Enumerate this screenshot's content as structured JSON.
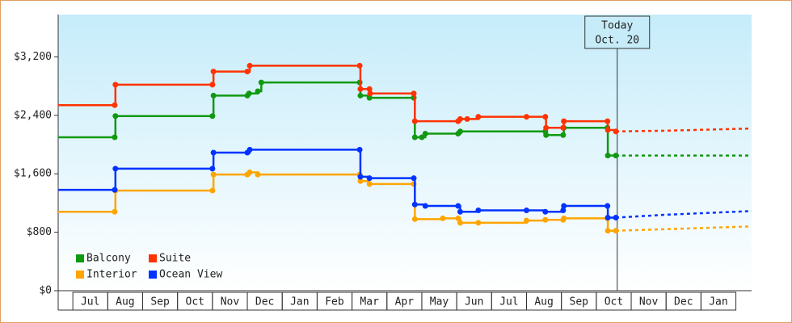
{
  "chart_data": {
    "type": "step-line",
    "legend": "lower left",
    "grid": false,
    "xlim": [
      -0.42,
      19.45
    ],
    "xticks": [
      {
        "value": 0.5,
        "label": "Jul"
      },
      {
        "value": 1.5,
        "label": "Aug"
      },
      {
        "value": 2.5,
        "label": "Sep"
      },
      {
        "value": 3.5,
        "label": "Oct"
      },
      {
        "value": 4.5,
        "label": "Nov"
      },
      {
        "value": 5.5,
        "label": "Dec"
      },
      {
        "value": 6.5,
        "label": "Jan"
      },
      {
        "value": 7.5,
        "label": "Feb"
      },
      {
        "value": 8.5,
        "label": "Mar"
      },
      {
        "value": 9.5,
        "label": "Apr"
      },
      {
        "value": 10.5,
        "label": "May"
      },
      {
        "value": 11.5,
        "label": "Jun"
      },
      {
        "value": 12.5,
        "label": "Jul"
      },
      {
        "value": 13.5,
        "label": "Aug"
      },
      {
        "value": 14.5,
        "label": "Sep"
      },
      {
        "value": 15.5,
        "label": "Oct"
      },
      {
        "value": 16.5,
        "label": "Nov"
      },
      {
        "value": 17.5,
        "label": "Dec"
      },
      {
        "value": 18.5,
        "label": "Jan"
      }
    ],
    "ylim": [
      0,
      3780
    ],
    "yticks": [
      {
        "value": 0,
        "label": "$0"
      },
      {
        "value": 800,
        "label": "$800"
      },
      {
        "value": 1600,
        "label": "$1,600"
      },
      {
        "value": 2400,
        "label": "$2,400"
      },
      {
        "value": 3200,
        "label": "$3,200"
      }
    ],
    "today": {
      "label": "Today",
      "date": "Oct. 20",
      "x": 15.6
    },
    "series": [
      {
        "name": "Balcony",
        "color": "#119911",
        "x": [
          -0.42,
          1.2,
          1.22,
          4.0,
          4.03,
          5.0,
          5.05,
          5.3,
          5.4,
          8.22,
          8.24,
          8.5,
          9.77,
          9.8,
          10.0,
          10.1,
          11.04,
          11.1,
          13.54,
          13.56,
          14.05,
          14.07,
          15.32,
          15.33,
          15.56
        ],
        "values": [
          2100,
          2100,
          2390,
          2390,
          2670,
          2670,
          2700,
          2730,
          2850,
          2850,
          2670,
          2640,
          2640,
          2100,
          2100,
          2150,
          2150,
          2180,
          2180,
          2130,
          2130,
          2230,
          2230,
          1850,
          1850
        ],
        "forecast": {
          "x": [
            15.56,
            19.45
          ],
          "values": [
            1850,
            1850
          ]
        }
      },
      {
        "name": "Suite",
        "color": "#ff3300",
        "x": [
          -0.42,
          1.2,
          1.22,
          4.0,
          4.03,
          5.0,
          5.07,
          8.22,
          8.24,
          8.5,
          8.52,
          9.77,
          9.8,
          11.04,
          11.1,
          11.3,
          11.62,
          13.0,
          13.54,
          13.56,
          14.05,
          14.07,
          15.32,
          15.33,
          15.56
        ],
        "values": [
          2540,
          2540,
          2820,
          2820,
          3000,
          3000,
          3080,
          3080,
          2760,
          2760,
          2700,
          2700,
          2320,
          2320,
          2350,
          2350,
          2380,
          2380,
          2380,
          2230,
          2230,
          2320,
          2320,
          2200,
          2180
        ],
        "forecast": {
          "x": [
            15.56,
            17,
            19.45
          ],
          "values": [
            2180,
            2190,
            2220
          ]
        }
      },
      {
        "name": "Interior",
        "color": "#ffa500",
        "x": [
          -0.42,
          1.2,
          1.22,
          4.0,
          4.03,
          5.0,
          5.07,
          5.3,
          8.22,
          8.24,
          8.5,
          9.77,
          9.8,
          10.6,
          11.04,
          11.1,
          11.62,
          13.0,
          13.54,
          14.05,
          14.07,
          15.32,
          15.33,
          15.56
        ],
        "values": [
          1080,
          1080,
          1370,
          1370,
          1590,
          1590,
          1620,
          1590,
          1590,
          1500,
          1460,
          1460,
          980,
          990,
          990,
          930,
          930,
          960,
          970,
          970,
          990,
          990,
          820,
          820
        ],
        "forecast": {
          "x": [
            15.56,
            19.45
          ],
          "values": [
            820,
            880
          ]
        }
      },
      {
        "name": "Ocean View",
        "color": "#0033ff",
        "x": [
          -0.42,
          1.2,
          1.22,
          4.0,
          4.03,
          5.0,
          5.07,
          8.22,
          8.24,
          8.5,
          9.77,
          9.8,
          10.1,
          11.04,
          11.1,
          11.62,
          13.0,
          13.54,
          14.05,
          14.07,
          15.32,
          15.33,
          15.56
        ],
        "values": [
          1380,
          1380,
          1670,
          1670,
          1890,
          1890,
          1930,
          1930,
          1560,
          1540,
          1540,
          1180,
          1160,
          1160,
          1080,
          1100,
          1100,
          1080,
          1100,
          1160,
          1160,
          1000,
          1000
        ],
        "forecast": {
          "x": [
            15.56,
            17,
            19.45
          ],
          "values": [
            1000,
            1040,
            1090
          ]
        }
      }
    ]
  }
}
